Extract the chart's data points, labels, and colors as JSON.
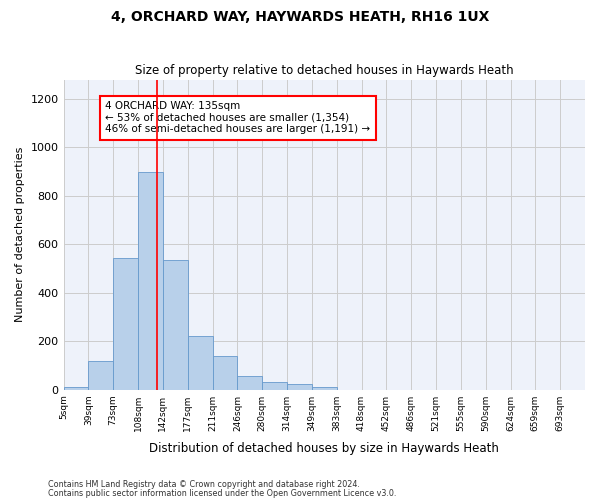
{
  "title1": "4, ORCHARD WAY, HAYWARDS HEATH, RH16 1UX",
  "title2": "Size of property relative to detached houses in Haywards Heath",
  "xlabel": "Distribution of detached houses by size in Haywards Heath",
  "ylabel": "Number of detached properties",
  "bin_labels": [
    "5sqm",
    "39sqm",
    "73sqm",
    "108sqm",
    "142sqm",
    "177sqm",
    "211sqm",
    "246sqm",
    "280sqm",
    "314sqm",
    "349sqm",
    "383sqm",
    "418sqm",
    "452sqm",
    "486sqm",
    "521sqm",
    "555sqm",
    "590sqm",
    "624sqm",
    "659sqm",
    "693sqm"
  ],
  "bar_heights": [
    10,
    120,
    545,
    900,
    535,
    220,
    140,
    55,
    32,
    22,
    10,
    0,
    0,
    0,
    0,
    0,
    0,
    0,
    0,
    0,
    0
  ],
  "bar_color": "#b8d0ea",
  "bar_edge_color": "#6699cc",
  "grid_color": "#cccccc",
  "background_color": "#eef2fa",
  "red_line_index": 3.75,
  "annotation_text": "4 ORCHARD WAY: 135sqm\n← 53% of detached houses are smaller (1,354)\n46% of semi-detached houses are larger (1,191) →",
  "annotation_box_color": "white",
  "annotation_box_edge": "red",
  "ylim": [
    0,
    1280
  ],
  "yticks": [
    0,
    200,
    400,
    600,
    800,
    1000,
    1200
  ],
  "footer1": "Contains HM Land Registry data © Crown copyright and database right 2024.",
  "footer2": "Contains public sector information licensed under the Open Government Licence v3.0."
}
